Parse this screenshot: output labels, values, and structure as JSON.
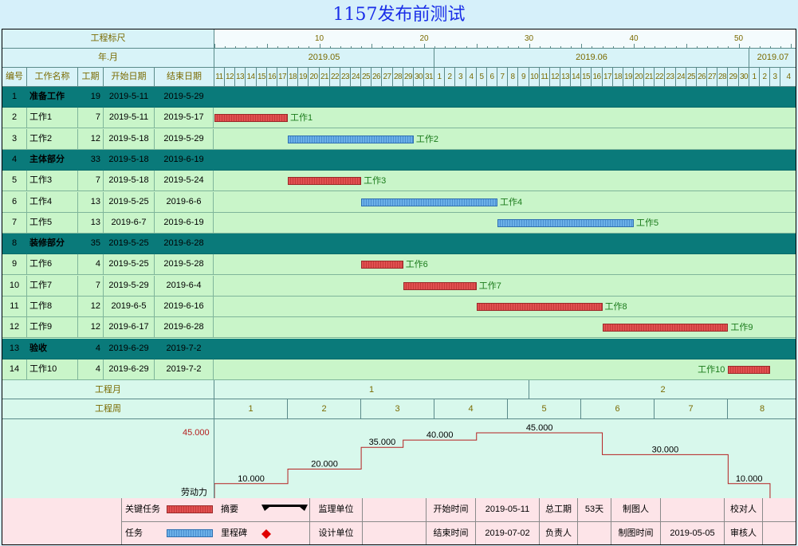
{
  "title": "1157发布前测试",
  "colors": {
    "summary": "#0a7a7a",
    "critical": "#d94848",
    "task": "#5aa6e6",
    "title": "#1a2ee8",
    "resource": "#b52020"
  },
  "header": {
    "scale_label": "工程标尺",
    "month_label": "年.月",
    "columns": [
      "编号",
      "工作名称",
      "工期",
      "开始日期",
      "结束日期"
    ],
    "scale_ticks": [
      "10",
      "20",
      "30",
      "40",
      "50"
    ],
    "months": [
      "2019.05",
      "2019.06",
      "2019.07"
    ],
    "days": [
      "11",
      "12",
      "13",
      "14",
      "15",
      "16",
      "17",
      "18",
      "19",
      "20",
      "21",
      "22",
      "23",
      "24",
      "25",
      "26",
      "27",
      "28",
      "29",
      "30",
      "31",
      "1",
      "2",
      "3",
      "4",
      "5",
      "6",
      "7",
      "8",
      "9",
      "10",
      "11",
      "12",
      "13",
      "14",
      "15",
      "16",
      "17",
      "18",
      "19",
      "20",
      "21",
      "22",
      "23",
      "24",
      "25",
      "26",
      "27",
      "28",
      "29",
      "30",
      "1",
      "2",
      "3",
      "4"
    ]
  },
  "tasks": [
    {
      "no": "1",
      "name": "准备工作",
      "dur": "19",
      "start": "2019-5-11",
      "end": "2019-5-29",
      "summary": true
    },
    {
      "no": "2",
      "name": "工作1",
      "dur": "7",
      "start": "2019-5-11",
      "end": "2019-5-17",
      "bar_start": 0,
      "bar_days": 7,
      "kind": "critical",
      "label": "工作1"
    },
    {
      "no": "3",
      "name": "工作2",
      "dur": "12",
      "start": "2019-5-18",
      "end": "2019-5-29",
      "bar_start": 7,
      "bar_days": 12,
      "kind": "task",
      "label": "工作2"
    },
    {
      "no": "4",
      "name": "主体部分",
      "dur": "33",
      "start": "2019-5-18",
      "end": "2019-6-19",
      "summary": true
    },
    {
      "no": "5",
      "name": "工作3",
      "dur": "7",
      "start": "2019-5-18",
      "end": "2019-5-24",
      "bar_start": 7,
      "bar_days": 7,
      "kind": "critical",
      "label": "工作3"
    },
    {
      "no": "6",
      "name": "工作4",
      "dur": "13",
      "start": "2019-5-25",
      "end": "2019-6-6",
      "bar_start": 14,
      "bar_days": 13,
      "kind": "task",
      "label": "工作4"
    },
    {
      "no": "7",
      "name": "工作5",
      "dur": "13",
      "start": "2019-6-7",
      "end": "2019-6-19",
      "bar_start": 27,
      "bar_days": 13,
      "kind": "task",
      "label": "工作5"
    },
    {
      "no": "8",
      "name": "装修部分",
      "dur": "35",
      "start": "2019-5-25",
      "end": "2019-6-28",
      "summary": true
    },
    {
      "no": "9",
      "name": "工作6",
      "dur": "4",
      "start": "2019-5-25",
      "end": "2019-5-28",
      "bar_start": 14,
      "bar_days": 4,
      "kind": "critical",
      "label": "工作6"
    },
    {
      "no": "10",
      "name": "工作7",
      "dur": "7",
      "start": "2019-5-29",
      "end": "2019-6-4",
      "bar_start": 18,
      "bar_days": 7,
      "kind": "critical",
      "label": "工作7"
    },
    {
      "no": "11",
      "name": "工作8",
      "dur": "12",
      "start": "2019-6-5",
      "end": "2019-6-16",
      "bar_start": 25,
      "bar_days": 12,
      "kind": "critical",
      "label": "工作8"
    },
    {
      "no": "12",
      "name": "工作9",
      "dur": "12",
      "start": "2019-6-17",
      "end": "2019-6-28",
      "bar_start": 37,
      "bar_days": 12,
      "kind": "critical",
      "label": "工作9"
    },
    {
      "no": "13",
      "name": "验收",
      "dur": "4",
      "start": "2019-6-29",
      "end": "2019-7-2",
      "summary": true
    },
    {
      "no": "14",
      "name": "工作10",
      "dur": "4",
      "start": "2019-6-29",
      "end": "2019-7-2",
      "bar_start": 49,
      "bar_days": 4,
      "kind": "critical",
      "label": "工作10",
      "label_left": true
    }
  ],
  "project_month_label": "工程月",
  "project_months": [
    {
      "label": "1",
      "days": 30
    },
    {
      "label": "2",
      "days": 25
    }
  ],
  "project_week_label": "工程周",
  "project_weeks": [
    "1",
    "2",
    "3",
    "4",
    "5",
    "6",
    "7",
    "8"
  ],
  "resource": {
    "label": "劳动力",
    "max_label": "45.000",
    "max": 45,
    "steps": [
      {
        "from": 0,
        "to": 7,
        "value": 10,
        "label": "10.000"
      },
      {
        "from": 7,
        "to": 14,
        "value": 20,
        "label": "20.000"
      },
      {
        "from": 14,
        "to": 18,
        "value": 35,
        "label": "35.000"
      },
      {
        "from": 18,
        "to": 25,
        "value": 40,
        "label": "40.000"
      },
      {
        "from": 25,
        "to": 37,
        "value": 45,
        "label": "45.000"
      },
      {
        "from": 37,
        "to": 49,
        "value": 30,
        "label": "30.000"
      },
      {
        "from": 49,
        "to": 53,
        "value": 10,
        "label": "10.000"
      }
    ]
  },
  "legend": {
    "critical": "关键任务",
    "summary": "摘要",
    "task": "任务",
    "milestone": "里程碑"
  },
  "info": {
    "supervisor_label": "监理单位",
    "supervisor": "",
    "designer_label": "设计单位",
    "designer": "",
    "start_label": "开始时间",
    "start": "2019-05-11",
    "end_label": "结束时间",
    "end": "2019-07-02",
    "total_label": "总工期",
    "total": "53天",
    "owner_label": "负责人",
    "owner": "",
    "drawer_label": "制图人",
    "drawer": "",
    "draw_time_label": "制图时间",
    "draw_time": "2019-05-05",
    "checker_label": "校对人",
    "checker": "",
    "reviewer_label": "审核人",
    "reviewer": ""
  }
}
